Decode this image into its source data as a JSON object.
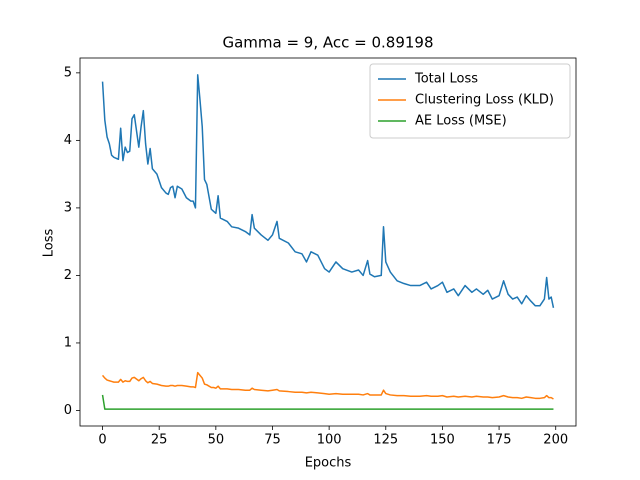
{
  "chart_data": {
    "type": "line",
    "title": "Gamma = 9, Acc = 0.89198",
    "x_label": "Epochs",
    "y_label": "Loss",
    "xlim": [
      -9.95,
      208.95
    ],
    "ylim": [
      -0.23,
      5.22
    ],
    "xticks": [
      0,
      25,
      50,
      75,
      100,
      125,
      150,
      175,
      200
    ],
    "yticks": [
      0,
      1,
      2,
      3,
      4,
      5
    ],
    "legend": "upper right",
    "grid": false,
    "x": [
      0,
      1,
      2,
      3,
      4,
      5,
      7,
      8,
      9,
      10,
      11,
      12,
      13,
      14,
      16,
      17,
      18,
      19,
      20,
      21,
      22,
      24,
      26,
      28,
      29,
      30,
      31,
      32,
      33,
      35,
      37,
      39,
      40,
      41,
      42,
      43,
      44,
      45,
      46,
      48,
      49,
      50,
      51,
      52,
      55,
      57,
      60,
      63,
      65,
      66,
      67,
      70,
      73,
      75,
      77,
      78,
      82,
      85,
      88,
      90,
      92,
      95,
      98,
      100,
      103,
      106,
      110,
      113,
      115,
      117,
      118,
      120,
      123,
      124,
      125,
      127,
      130,
      133,
      136,
      140,
      143,
      145,
      148,
      150,
      152,
      155,
      157,
      160,
      163,
      165,
      168,
      170,
      172,
      175,
      177,
      179,
      181,
      183,
      185,
      187,
      189,
      191,
      193,
      195,
      196,
      197,
      198,
      199
    ],
    "series": [
      {
        "name": "Total Loss",
        "color": "#1f77b4",
        "values": [
          4.87,
          4.3,
          4.05,
          3.95,
          3.78,
          3.75,
          3.72,
          4.18,
          3.7,
          3.9,
          3.82,
          3.84,
          4.32,
          4.38,
          3.9,
          4.2,
          4.44,
          3.95,
          3.65,
          3.88,
          3.58,
          3.5,
          3.3,
          3.22,
          3.2,
          3.3,
          3.32,
          3.15,
          3.32,
          3.28,
          3.15,
          3.1,
          3.1,
          3.0,
          4.97,
          4.6,
          4.2,
          3.42,
          3.35,
          2.98,
          2.95,
          2.92,
          3.18,
          2.85,
          2.8,
          2.72,
          2.7,
          2.65,
          2.6,
          2.9,
          2.7,
          2.6,
          2.52,
          2.6,
          2.8,
          2.55,
          2.48,
          2.35,
          2.32,
          2.2,
          2.35,
          2.3,
          2.1,
          2.05,
          2.2,
          2.1,
          2.05,
          2.08,
          2.0,
          2.22,
          2.02,
          1.98,
          2.0,
          2.72,
          2.2,
          2.05,
          1.92,
          1.88,
          1.85,
          1.85,
          1.9,
          1.8,
          1.85,
          1.9,
          1.75,
          1.8,
          1.7,
          1.85,
          1.75,
          1.8,
          1.72,
          1.78,
          1.65,
          1.7,
          1.92,
          1.72,
          1.65,
          1.68,
          1.58,
          1.7,
          1.62,
          1.55,
          1.55,
          1.65,
          1.97,
          1.65,
          1.68,
          1.52
        ]
      },
      {
        "name": "Clustering Loss (KLD)",
        "color": "#ff7f0e",
        "values": [
          0.52,
          0.48,
          0.45,
          0.44,
          0.43,
          0.42,
          0.42,
          0.46,
          0.42,
          0.44,
          0.43,
          0.43,
          0.48,
          0.49,
          0.44,
          0.47,
          0.49,
          0.44,
          0.41,
          0.43,
          0.4,
          0.39,
          0.37,
          0.36,
          0.36,
          0.37,
          0.37,
          0.36,
          0.37,
          0.37,
          0.36,
          0.35,
          0.35,
          0.34,
          0.56,
          0.52,
          0.48,
          0.39,
          0.38,
          0.34,
          0.34,
          0.33,
          0.36,
          0.32,
          0.32,
          0.31,
          0.31,
          0.3,
          0.3,
          0.33,
          0.31,
          0.3,
          0.29,
          0.3,
          0.31,
          0.29,
          0.28,
          0.27,
          0.27,
          0.26,
          0.27,
          0.26,
          0.25,
          0.24,
          0.25,
          0.24,
          0.24,
          0.24,
          0.23,
          0.25,
          0.23,
          0.23,
          0.23,
          0.3,
          0.25,
          0.23,
          0.22,
          0.22,
          0.21,
          0.21,
          0.22,
          0.21,
          0.21,
          0.22,
          0.2,
          0.21,
          0.2,
          0.21,
          0.2,
          0.21,
          0.2,
          0.2,
          0.19,
          0.2,
          0.22,
          0.2,
          0.19,
          0.19,
          0.18,
          0.2,
          0.19,
          0.18,
          0.18,
          0.19,
          0.22,
          0.19,
          0.19,
          0.17
        ]
      },
      {
        "name": "AE Loss (MSE)",
        "color": "#2ca02c",
        "values": [
          0.23,
          0.02,
          0.02,
          0.02,
          0.02,
          0.02,
          0.02,
          0.02,
          0.02,
          0.02,
          0.02,
          0.02,
          0.02,
          0.02,
          0.02,
          0.02,
          0.02,
          0.02,
          0.02,
          0.02,
          0.02,
          0.02,
          0.02,
          0.02,
          0.02,
          0.02,
          0.02,
          0.02,
          0.02,
          0.02,
          0.02,
          0.02,
          0.02,
          0.02,
          0.02,
          0.02,
          0.02,
          0.02,
          0.02,
          0.02,
          0.02,
          0.02,
          0.02,
          0.02,
          0.02,
          0.02,
          0.02,
          0.02,
          0.02,
          0.02,
          0.02,
          0.02,
          0.02,
          0.02,
          0.02,
          0.02,
          0.02,
          0.02,
          0.02,
          0.02,
          0.02,
          0.02,
          0.02,
          0.02,
          0.02,
          0.02,
          0.02,
          0.02,
          0.02,
          0.02,
          0.02,
          0.02,
          0.02,
          0.02,
          0.02,
          0.02,
          0.02,
          0.02,
          0.02,
          0.02,
          0.02,
          0.02,
          0.02,
          0.02,
          0.02,
          0.02,
          0.02,
          0.02,
          0.02,
          0.02,
          0.02,
          0.02,
          0.02,
          0.02,
          0.02,
          0.02,
          0.02,
          0.02,
          0.02,
          0.02,
          0.02,
          0.02,
          0.02,
          0.02,
          0.02,
          0.02,
          0.02,
          0.02
        ]
      }
    ]
  }
}
